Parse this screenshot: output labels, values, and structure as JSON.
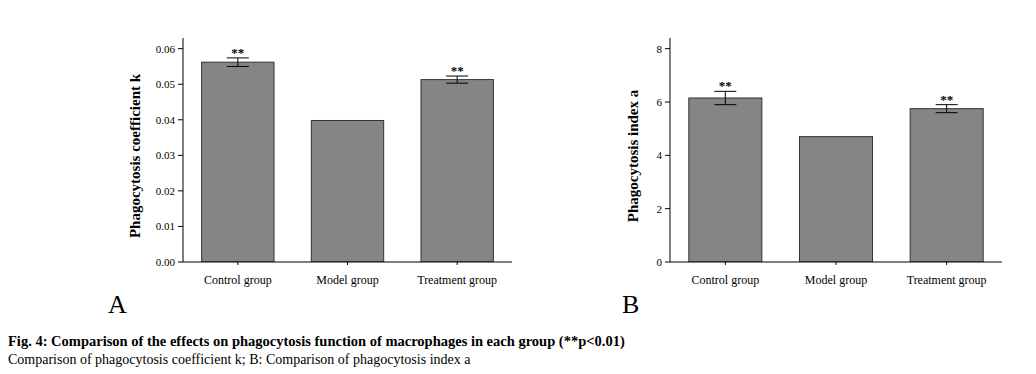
{
  "chart_data": [
    {
      "type": "bar",
      "panel": "A",
      "categories": [
        "Control group",
        "Model group",
        "Treatment group"
      ],
      "values": [
        0.0562,
        0.0398,
        0.0513
      ],
      "errors": [
        0.0012,
        null,
        0.001
      ],
      "significance": [
        "**",
        null,
        "**"
      ],
      "y_label": "Phagocytosis coefficient k",
      "color": "#858585",
      "ylim": [
        0,
        0.063
      ],
      "yticks": [
        {
          "value": 0,
          "label": "0.00"
        },
        {
          "value": 0.01,
          "label": "0.01"
        },
        {
          "value": 0.02,
          "label": "0.02"
        },
        {
          "value": 0.03,
          "label": "0.03"
        },
        {
          "value": 0.04,
          "label": "0.04"
        },
        {
          "value": 0.05,
          "label": "0.05"
        },
        {
          "value": 0.06,
          "label": "0.06"
        }
      ],
      "grid": false
    },
    {
      "type": "bar",
      "panel": "B",
      "categories": [
        "Control group",
        "Model group",
        "Treatment group"
      ],
      "values": [
        6.15,
        4.7,
        5.75
      ],
      "errors": [
        0.25,
        null,
        0.15
      ],
      "significance": [
        "**",
        null,
        "**"
      ],
      "y_label": "Phagocytosis index a",
      "color": "#858585",
      "ylim": [
        0,
        8.4
      ],
      "yticks": [
        0,
        2,
        4,
        6,
        8
      ],
      "grid": false
    }
  ],
  "caption": {
    "title": "Fig. 4: Comparison of the effects on phagocytosis function of macrophages in each group (**p<0.01)",
    "text": "Comparison of phagocytosis coefficient k; B: Comparison of phagocytosis index a"
  }
}
